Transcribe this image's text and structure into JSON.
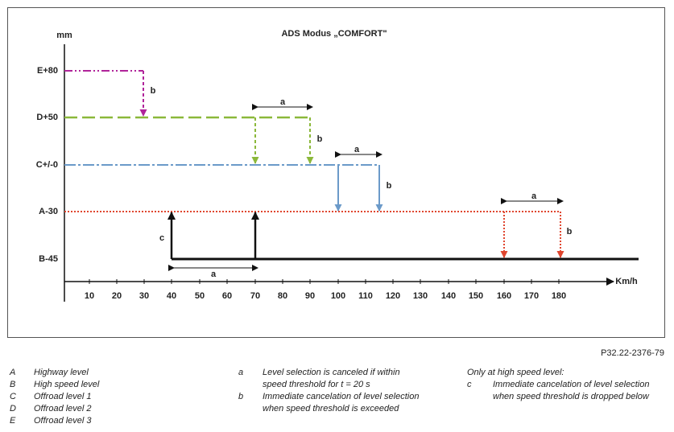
{
  "diagram": {
    "title": "ADS Modus „COMFORT\"",
    "y_unit": "mm",
    "x_unit": "Km/h",
    "levels": [
      "E+80",
      "D+50",
      "C+/-0",
      "A-30",
      "B-45"
    ],
    "x_ticks": [
      10,
      20,
      30,
      40,
      50,
      60,
      70,
      80,
      90,
      100,
      110,
      120,
      130,
      140,
      150,
      160,
      170,
      180
    ],
    "markers": [
      "b",
      "a",
      "b",
      "a",
      "b",
      "a",
      "b",
      "c",
      "a"
    ]
  },
  "reference": "P32.22-2376-79",
  "legend": {
    "levels": [
      {
        "key": "A",
        "text": "Highway level"
      },
      {
        "key": "B",
        "text": "High speed level"
      },
      {
        "key": "C",
        "text": "Offroad level 1"
      },
      {
        "key": "D",
        "text": "Offroad level 2"
      },
      {
        "key": "E",
        "text": "Offroad level 3"
      }
    ],
    "notes": [
      {
        "key": "a",
        "text": "Level selection is canceled if within speed threshold for t = 20 s"
      },
      {
        "key": "b",
        "text": "Immediate cancelation of level selection when speed threshold is exceeded"
      }
    ],
    "high_speed": {
      "heading": "Only at high speed level:",
      "key": "c",
      "text": "Immediate cancelation of level selection when speed threshold is dropped below"
    }
  }
}
